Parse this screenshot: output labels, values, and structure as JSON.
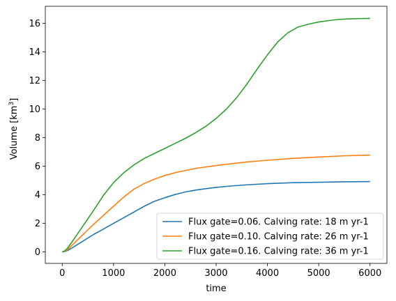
{
  "chart_data": {
    "type": "line",
    "xlabel": "time",
    "ylabel": "Volume [km",
    "ylabel_sup": "3",
    "ylabel_end": "]",
    "xlim": [
      -330,
      6330
    ],
    "ylim": [
      -0.8,
      17.2
    ],
    "xticks": [
      0,
      1000,
      2000,
      3000,
      4000,
      5000,
      6000
    ],
    "yticks": [
      0,
      2,
      4,
      6,
      8,
      10,
      12,
      14,
      16
    ],
    "legend_position": "lower-right",
    "series": [
      {
        "name": "Flux gate=0.06. Calving rate: 18 m yr-1",
        "color": "#1f77b4",
        "x": [
          0,
          50,
          100,
          200,
          400,
          600,
          800,
          1000,
          1200,
          1400,
          1600,
          1800,
          2000,
          2200,
          2400,
          2600,
          2800,
          3000,
          3300,
          3600,
          4000,
          4500,
          5000,
          5500,
          6000
        ],
        "y": [
          0,
          0.03,
          0.1,
          0.3,
          0.75,
          1.2,
          1.6,
          2.0,
          2.4,
          2.8,
          3.2,
          3.55,
          3.8,
          4.02,
          4.2,
          4.33,
          4.43,
          4.52,
          4.62,
          4.7,
          4.78,
          4.85,
          4.88,
          4.91,
          4.93
        ]
      },
      {
        "name": "Flux gate=0.10. Calving rate: 26 m yr-1",
        "color": "#ff7f0e",
        "x": [
          0,
          50,
          100,
          200,
          400,
          600,
          800,
          1000,
          1200,
          1400,
          1600,
          1800,
          2000,
          2200,
          2400,
          2600,
          2800,
          3000,
          3300,
          3600,
          4000,
          4500,
          5000,
          5500,
          6000
        ],
        "y": [
          0,
          0.05,
          0.15,
          0.5,
          1.2,
          1.9,
          2.55,
          3.2,
          3.85,
          4.4,
          4.8,
          5.1,
          5.35,
          5.55,
          5.7,
          5.85,
          5.95,
          6.05,
          6.18,
          6.3,
          6.42,
          6.55,
          6.65,
          6.73,
          6.78
        ]
      },
      {
        "name": "Flux gate=0.16. Calving rate: 36 m yr-1",
        "color": "#2ca02c",
        "x": [
          0,
          50,
          100,
          200,
          400,
          600,
          800,
          1000,
          1200,
          1400,
          1600,
          1800,
          2000,
          2200,
          2400,
          2600,
          2800,
          3000,
          3200,
          3400,
          3600,
          3800,
          4000,
          4200,
          4400,
          4600,
          4800,
          5000,
          5200,
          5400,
          5600,
          5800,
          6000
        ],
        "y": [
          0,
          0.08,
          0.25,
          0.75,
          1.8,
          2.85,
          3.95,
          4.85,
          5.55,
          6.1,
          6.55,
          6.9,
          7.25,
          7.6,
          7.95,
          8.35,
          8.8,
          9.35,
          10.0,
          10.8,
          11.75,
          12.8,
          13.8,
          14.7,
          15.35,
          15.75,
          15.95,
          16.1,
          16.2,
          16.28,
          16.32,
          16.34,
          16.35
        ]
      }
    ]
  }
}
